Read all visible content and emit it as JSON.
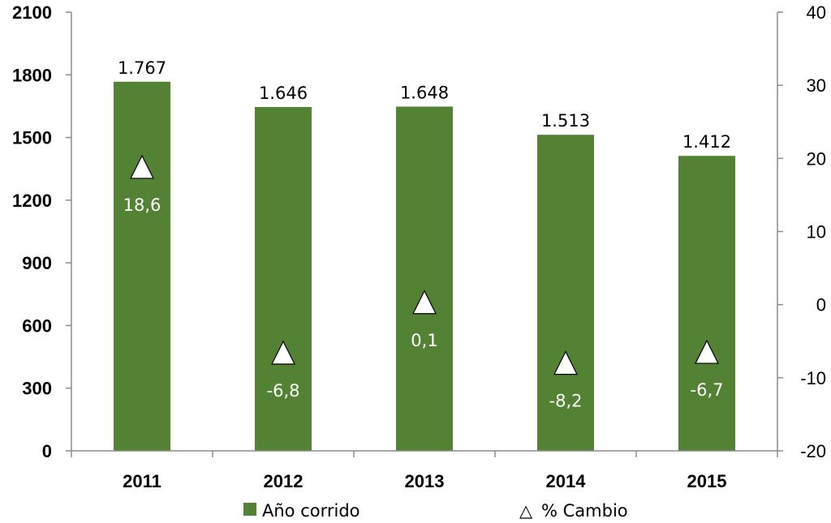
{
  "chart_data": {
    "type": "bar",
    "categories": [
      "2011",
      "2012",
      "2013",
      "2014",
      "2015"
    ],
    "series": [
      {
        "name": "Año corrido",
        "type": "bar",
        "axis": "left",
        "values": [
          1767,
          1646,
          1648,
          1513,
          1412
        ],
        "labels": [
          "1.767",
          "1.646",
          "1.648",
          "1.513",
          "1.412"
        ],
        "color": "#548235"
      },
      {
        "name": "% Cambio",
        "type": "scatter",
        "marker": "triangle",
        "axis": "right",
        "values": [
          18.6,
          -6.8,
          0.1,
          -8.2,
          -6.7
        ],
        "labels": [
          "18,6",
          "-6,8",
          "0,1",
          "-8,2",
          "-6,7"
        ],
        "color": "#ffffff"
      }
    ],
    "y_left": {
      "min": 0,
      "max": 2100,
      "ticks": [
        "0",
        "300",
        "600",
        "900",
        "1200",
        "1500",
        "1800",
        "2100"
      ]
    },
    "y_right": {
      "min": -20,
      "max": 40,
      "ticks": [
        "-20",
        "-10",
        "0",
        "10",
        "20",
        "30",
        "40"
      ]
    },
    "legend": {
      "position": "bottom",
      "symbol_triangle": "△"
    },
    "grid": false
  }
}
